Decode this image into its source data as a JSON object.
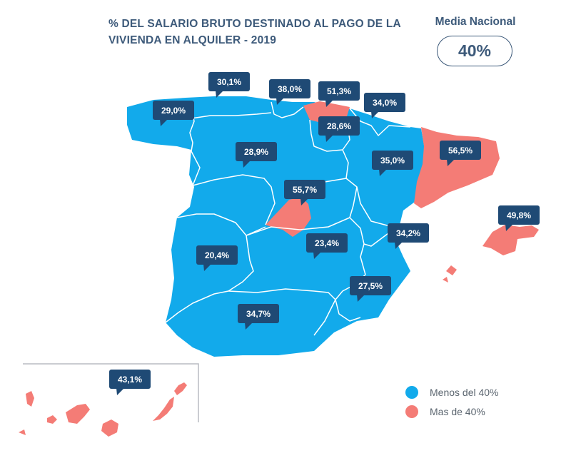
{
  "title": "% DEL SALARIO BRUTO DESTINADO AL PAGO DE LA VIVIENDA EN ALQUILER - 2019",
  "media_nacional": {
    "label": "Media Nacional",
    "value": "40%"
  },
  "colors": {
    "below": "#12aaeb",
    "above": "#f47c76",
    "callout": "#1f4a75",
    "heading": "#3d5a7a"
  },
  "legend": [
    {
      "label": "Menos del 40%",
      "color": "#12aaeb"
    },
    {
      "label": "Mas de 40%",
      "color": "#f47c76"
    }
  ],
  "regions": [
    {
      "key": "galicia",
      "value": "29,0%"
    },
    {
      "key": "asturias",
      "value": "30,1%"
    },
    {
      "key": "cantabria",
      "value": "38,0%"
    },
    {
      "key": "pais_vasco",
      "value": "51,3%"
    },
    {
      "key": "navarra",
      "value": "34,0%"
    },
    {
      "key": "la_rioja",
      "value": "28,6%"
    },
    {
      "key": "castilla_y_leon",
      "value": "28,9%"
    },
    {
      "key": "cataluna",
      "value": "56,5%"
    },
    {
      "key": "aragon",
      "value": "35,0%"
    },
    {
      "key": "madrid",
      "value": "55,7%"
    },
    {
      "key": "baleares",
      "value": "49,8%"
    },
    {
      "key": "comunidad_valenciana",
      "value": "34,2%"
    },
    {
      "key": "extremadura",
      "value": "20,4%"
    },
    {
      "key": "castilla_la_mancha",
      "value": "23,4%"
    },
    {
      "key": "murcia",
      "value": "27,5%"
    },
    {
      "key": "andalucia",
      "value": "34,7%"
    },
    {
      "key": "canarias",
      "value": "43,1%"
    }
  ]
}
